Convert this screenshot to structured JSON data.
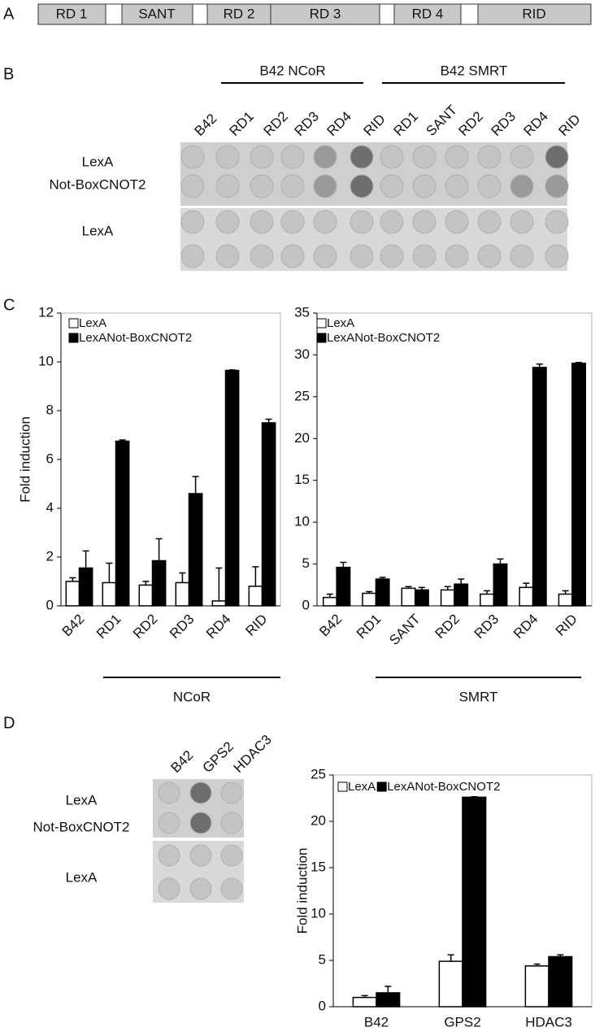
{
  "panels": [
    "A",
    "B",
    "C",
    "D"
  ],
  "domain_map": {
    "segments": [
      "RD 1",
      "SANT",
      "RD 2",
      "RD 3",
      "RD 4",
      "RID"
    ]
  },
  "blot_b": {
    "groups": [
      "B42 NCoR",
      "B42 SMRT"
    ],
    "columns": [
      "B42",
      "RD1",
      "RD2",
      "RD3",
      "RD4",
      "RID",
      "RD1",
      "SANT",
      "RD2",
      "RD3",
      "RD4",
      "RID"
    ],
    "row_labels": [
      "LexA",
      "Not-BoxCNOT2",
      "LexA"
    ]
  },
  "blot_d": {
    "columns": [
      "B42",
      "GPS2",
      "HDAC3"
    ],
    "row_labels": [
      "LexA",
      "Not-BoxCNOT2",
      "LexA"
    ]
  },
  "chart_data": [
    {
      "type": "bar",
      "y_label": "Fold induction",
      "group_label": "NCoR",
      "legend": "top-left",
      "categories": [
        "B42",
        "RD1",
        "RD2",
        "RD3",
        "RD4",
        "RID"
      ],
      "ylim": [
        0,
        12
      ],
      "yticks": [
        0,
        2,
        4,
        6,
        8,
        10,
        12
      ],
      "series": [
        {
          "name": "LexA",
          "color": "#ffffff",
          "values": [
            1.0,
            0.95,
            0.85,
            0.95,
            0.2,
            0.8
          ],
          "errors": [
            0.15,
            0.8,
            0.15,
            0.4,
            1.35,
            0.8
          ]
        },
        {
          "name": "LexANot-BoxCNOT2",
          "color": "#000000",
          "values": [
            1.55,
            6.75,
            1.85,
            4.6,
            9.65,
            7.5
          ],
          "errors": [
            0.7,
            0.05,
            0.9,
            0.7,
            0.02,
            0.15
          ]
        }
      ]
    },
    {
      "type": "bar",
      "group_label": "SMRT",
      "legend": "top-left",
      "categories": [
        "B42",
        "RD1",
        "SANT",
        "RD2",
        "RD3",
        "RD4",
        "RID"
      ],
      "ylim": [
        0,
        35
      ],
      "yticks": [
        0,
        5,
        10,
        15,
        20,
        25,
        30,
        35
      ],
      "series": [
        {
          "name": "LexA",
          "color": "#ffffff",
          "values": [
            1.0,
            1.5,
            2.1,
            1.9,
            1.4,
            2.2,
            1.4
          ],
          "errors": [
            0.4,
            0.2,
            0.2,
            0.4,
            0.4,
            0.5,
            0.4
          ]
        },
        {
          "name": "LexANot-BoxCNOT2",
          "color": "#000000",
          "values": [
            4.6,
            3.2,
            1.9,
            2.6,
            5.0,
            28.5,
            29.0
          ],
          "errors": [
            0.6,
            0.2,
            0.3,
            0.6,
            0.6,
            0.4,
            0.1
          ]
        }
      ]
    },
    {
      "type": "bar",
      "y_label": "Fold induction",
      "legend": "top",
      "categories": [
        "B42",
        "GPS2",
        "HDAC3"
      ],
      "ylim": [
        0,
        25
      ],
      "yticks": [
        0,
        5,
        10,
        15,
        20,
        25
      ],
      "series": [
        {
          "name": "LexA",
          "color": "#ffffff",
          "values": [
            1.0,
            4.9,
            4.4
          ],
          "errors": [
            0.2,
            0.7,
            0.2
          ]
        },
        {
          "name": "LexANot-BoxCNOT2",
          "color": "#000000",
          "values": [
            1.5,
            22.6,
            5.4
          ],
          "errors": [
            0.7,
            0.05,
            0.2
          ]
        }
      ]
    }
  ]
}
